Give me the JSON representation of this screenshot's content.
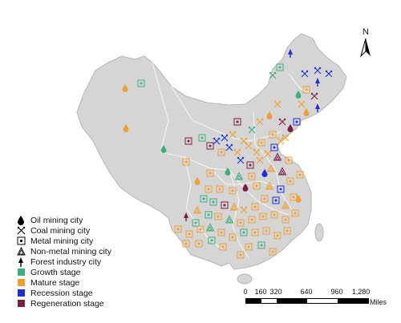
{
  "legend": {
    "symbols": [
      {
        "label": "Oil mining city",
        "icon": "oil-drop-icon"
      },
      {
        "label": "Coal mining city",
        "icon": "crossed-picks-icon"
      },
      {
        "label": "Metal mining city",
        "icon": "dotted-square-icon"
      },
      {
        "label": "Non-metal mining city",
        "icon": "triangle-outline-icon"
      },
      {
        "label": "Forest industry city",
        "icon": "tree-icon"
      }
    ],
    "stages": [
      {
        "label": "Growth stage",
        "color": "#3cb07a"
      },
      {
        "label": "Mature stage",
        "color": "#f0a030"
      },
      {
        "label": "Recession stage",
        "color": "#1f2fd6"
      },
      {
        "label": "Regeneration stage",
        "color": "#7a1e46"
      }
    ]
  },
  "north_arrow": {
    "label": "N"
  },
  "scale": {
    "ticks": [
      "0",
      "160",
      "320",
      "640",
      "960",
      "1,280"
    ],
    "unit": "Miles"
  }
}
